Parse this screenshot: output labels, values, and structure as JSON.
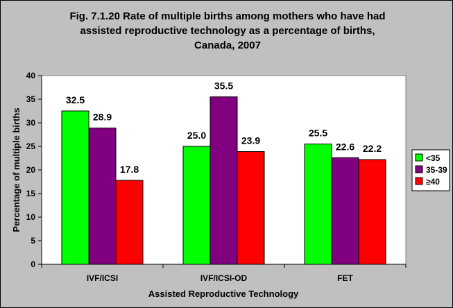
{
  "chart_data": {
    "type": "bar",
    "title_lines": [
      "Fig. 7.1.20 Rate of multiple births among mothers who have had",
      "assisted reproductive technology as a percentage of births,",
      "Canada, 2007"
    ],
    "xlabel": "Assisted Reproductive Technology",
    "ylabel": "Percentage of multiple births",
    "categories": [
      "IVF/ICSI",
      "IVF/ICSI-OD",
      "FET"
    ],
    "ylim": [
      0,
      40
    ],
    "yticks": [
      "0",
      "5",
      "10",
      "15",
      "20",
      "25",
      "30",
      "35",
      "40"
    ],
    "series": [
      {
        "name": "<35",
        "values": [
          32.5,
          25.0,
          25.5
        ],
        "labels": [
          "32.5",
          "25.0",
          "25.5"
        ],
        "color": "#00ff00"
      },
      {
        "name": "35-39",
        "values": [
          28.9,
          35.5,
          22.6
        ],
        "labels": [
          "28.9",
          "35.5",
          "22.6"
        ],
        "color": "#800080"
      },
      {
        "name": "≥40",
        "values": [
          17.8,
          23.9,
          22.2
        ],
        "labels": [
          "17.8",
          "23.9",
          "22.2"
        ],
        "color": "#ff0000"
      }
    ],
    "grid": false,
    "legend_position": "right",
    "plot_background": "#ffffff",
    "chart_background": "#c0c0c0"
  }
}
